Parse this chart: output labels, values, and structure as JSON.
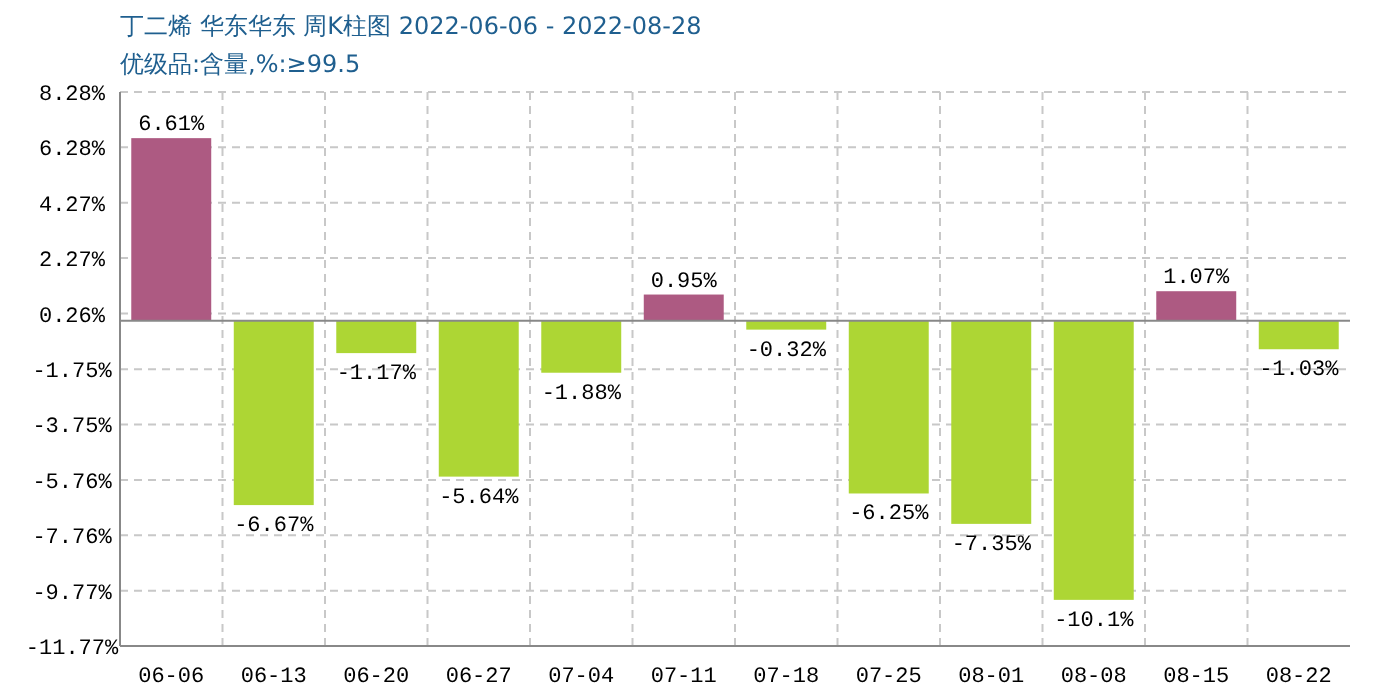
{
  "chart_data": {
    "type": "bar",
    "title": "丁二烯 华东华东 周K柱图 2022-06-06 - 2022-08-28",
    "subtitle": "优级品:含量,%:≥99.5",
    "categories": [
      "06-06",
      "06-13",
      "06-20",
      "06-27",
      "07-04",
      "07-11",
      "07-18",
      "07-25",
      "08-01",
      "08-08",
      "08-15",
      "08-22"
    ],
    "values": [
      6.61,
      -6.67,
      -1.17,
      -5.64,
      -1.88,
      0.95,
      -0.32,
      -6.25,
      -7.35,
      -10.1,
      1.07,
      -1.03
    ],
    "value_labels": [
      "6.61%",
      "-6.67%",
      "-1.17%",
      "-5.64%",
      "-1.88%",
      "0.95%",
      "-0.32%",
      "-6.25%",
      "-7.35%",
      "-10.1%",
      "1.07%",
      "-1.03%"
    ],
    "colors": [
      "#ad5a82",
      "#add634",
      "#add634",
      "#add634",
      "#add634",
      "#ad5a82",
      "#add634",
      "#add634",
      "#add634",
      "#add634",
      "#ad5a82",
      "#add634"
    ],
    "ylim": [
      -11.77,
      8.28
    ],
    "yticks": [
      {
        "value": 8.28,
        "label": "8.28%"
      },
      {
        "value": 6.28,
        "label": "6.28%"
      },
      {
        "value": 4.27,
        "label": "4.27%"
      },
      {
        "value": 2.27,
        "label": "2.27%"
      },
      {
        "value": 0.26,
        "label": "0.26%"
      },
      {
        "value": -1.75,
        "label": "-1.75%"
      },
      {
        "value": -3.75,
        "label": "-3.75%"
      },
      {
        "value": -5.76,
        "label": "-5.76%"
      },
      {
        "value": -7.76,
        "label": "-7.76%"
      },
      {
        "value": -9.77,
        "label": "-9.77%"
      },
      {
        "value": -11.77,
        "label": "-11.77%"
      }
    ],
    "grid": true
  }
}
